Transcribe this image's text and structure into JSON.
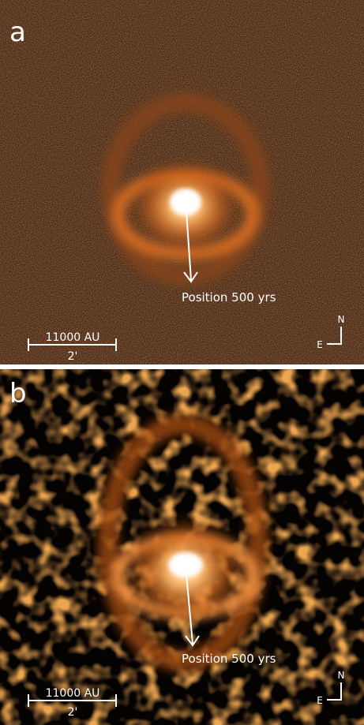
{
  "panels": [
    {
      "label": "a",
      "annotation": "Position 500 yrs",
      "scale_bar": {
        "length": "11000 AU",
        "angle": "2'"
      },
      "compass": {
        "north": "N",
        "east": "E"
      }
    },
    {
      "label": "b",
      "annotation": "Position 500 yrs",
      "scale_bar": {
        "length": "11000 AU",
        "angle": "2'"
      },
      "compass": {
        "north": "N",
        "east": "E"
      }
    }
  ]
}
